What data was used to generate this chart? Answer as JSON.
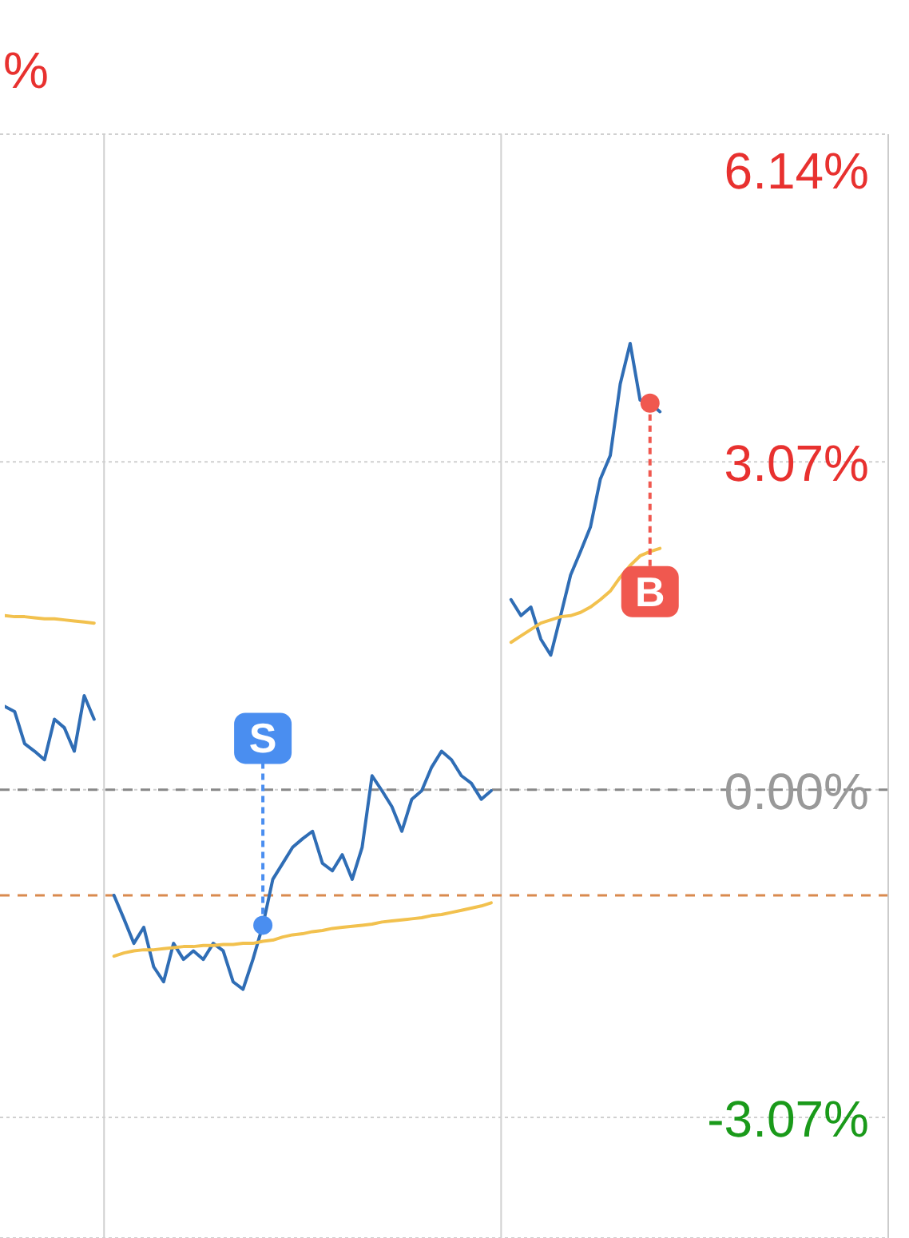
{
  "chart_data": {
    "type": "line",
    "title": "%",
    "categories": [
      null,
      null,
      null,
      null,
      null,
      null,
      null,
      null,
      null,
      null,
      null,
      null,
      null,
      null,
      null,
      null,
      null,
      null,
      null,
      null,
      null,
      null,
      null,
      null,
      null,
      null,
      null,
      null,
      null,
      null,
      null,
      null,
      null,
      null,
      null,
      null,
      null,
      null,
      null,
      null,
      null,
      null,
      null,
      null,
      null,
      null,
      null,
      null,
      null,
      null,
      null,
      null,
      null,
      null,
      null,
      null,
      null,
      null,
      null,
      null,
      null,
      null,
      null,
      null,
      null,
      null,
      null,
      null,
      null,
      null,
      null,
      null,
      null,
      null,
      null,
      null,
      null,
      null,
      null,
      null,
      null,
      null,
      null,
      null,
      null,
      null,
      null,
      null,
      null,
      null
    ],
    "series": [
      {
        "color": "#2f6db5",
        "values": [
          0.78,
          0.73,
          0.43,
          0.36,
          0.28,
          0.66,
          0.58,
          0.36,
          0.88,
          0.66,
          null,
          -0.99,
          -1.21,
          -1.44,
          -1.29,
          -1.66,
          -1.8,
          -1.44,
          -1.59,
          -1.51,
          -1.59,
          -1.44,
          -1.51,
          -1.8,
          -1.87,
          -1.59,
          -1.27,
          -0.84,
          -0.69,
          -0.54,
          -0.46,
          -0.39,
          -0.69,
          -0.76,
          -0.61,
          -0.84,
          -0.54,
          0.13,
          -0.01,
          -0.16,
          -0.39,
          -0.09,
          -0.01,
          0.21,
          0.36,
          0.28,
          0.13,
          0.06,
          -0.09,
          -0.01,
          null,
          1.78,
          1.63,
          1.71,
          1.41,
          1.26,
          1.63,
          2.01,
          2.23,
          2.46,
          2.91,
          3.13,
          3.8,
          4.18,
          3.65,
          3.62,
          3.54,
          null,
          null,
          null,
          null,
          null,
          null,
          null,
          null,
          null,
          null,
          null,
          null,
          null,
          null,
          null,
          null,
          null,
          null,
          null,
          null,
          null,
          null,
          null
        ]
      },
      {
        "color": "#f2c14e",
        "values": [
          1.63,
          1.62,
          1.62,
          1.61,
          1.6,
          1.6,
          1.59,
          1.58,
          1.57,
          1.56,
          null,
          -1.56,
          -1.53,
          -1.51,
          -1.5,
          -1.5,
          -1.49,
          -1.48,
          -1.47,
          -1.47,
          -1.46,
          -1.46,
          -1.45,
          -1.45,
          -1.44,
          -1.44,
          -1.42,
          -1.41,
          -1.38,
          -1.36,
          -1.35,
          -1.33,
          -1.32,
          -1.3,
          -1.29,
          -1.28,
          -1.27,
          -1.26,
          -1.24,
          -1.23,
          -1.22,
          -1.21,
          -1.2,
          -1.18,
          -1.17,
          -1.15,
          -1.13,
          -1.11,
          -1.09,
          -1.06,
          null,
          1.38,
          1.44,
          1.5,
          1.56,
          1.59,
          1.62,
          1.63,
          1.66,
          1.71,
          1.78,
          1.86,
          1.99,
          2.1,
          2.19,
          2.23,
          2.26,
          null,
          null,
          null,
          null,
          null,
          null,
          null,
          null,
          null,
          null,
          null,
          null,
          null,
          null,
          null,
          null,
          null,
          null,
          null,
          null,
          null,
          null,
          null
        ]
      },
      {
        "type": "scatter",
        "color": "#4a8ef0",
        "values": [
          null,
          null,
          null,
          null,
          null,
          null,
          null,
          null,
          null,
          null,
          null,
          null,
          null,
          null,
          null,
          null,
          null,
          null,
          null,
          null,
          null,
          null,
          null,
          null,
          null,
          null,
          -1.27,
          null,
          null,
          null,
          null,
          null,
          null,
          null,
          null,
          null,
          null,
          null,
          null,
          null,
          null,
          null,
          null,
          null,
          null,
          null,
          null,
          null,
          null,
          null,
          null,
          null,
          null,
          null,
          null,
          null,
          null,
          null,
          null,
          null,
          null,
          null,
          null,
          null,
          null,
          null,
          null,
          null,
          null,
          null,
          null,
          null,
          null,
          null,
          null,
          null,
          null,
          null,
          null,
          null,
          null,
          null,
          null,
          null,
          null,
          null,
          null,
          null,
          null,
          null
        ]
      },
      {
        "type": "scatter",
        "color": "#f0584f",
        "values": [
          null,
          null,
          null,
          null,
          null,
          null,
          null,
          null,
          null,
          null,
          null,
          null,
          null,
          null,
          null,
          null,
          null,
          null,
          null,
          null,
          null,
          null,
          null,
          null,
          null,
          null,
          null,
          null,
          null,
          null,
          null,
          null,
          null,
          null,
          null,
          null,
          null,
          null,
          null,
          null,
          null,
          null,
          null,
          null,
          null,
          null,
          null,
          null,
          null,
          null,
          null,
          null,
          null,
          null,
          null,
          null,
          null,
          null,
          null,
          null,
          null,
          null,
          null,
          null,
          null,
          3.62,
          null,
          null,
          null,
          null,
          null,
          null,
          null,
          null,
          null,
          null,
          null,
          null,
          null,
          null,
          null,
          null,
          null,
          null,
          null,
          null,
          null,
          null,
          null,
          null
        ]
      }
    ],
    "annotations": [
      "S",
      "B"
    ],
    "ylim": [
      -4.2,
      6.14
    ],
    "yticks": [
      {
        "value": 6.14,
        "label": "6.14%"
      },
      {
        "value": 3.07,
        "label": "3.07%"
      },
      {
        "value": 0,
        "label": "0.00%"
      },
      {
        "value": -3.07,
        "label": "-3.07%"
      }
    ],
    "ref_lines": [
      {
        "axis": "y",
        "value": 0,
        "color": "#888888",
        "line_style": "dashed"
      },
      {
        "axis": "y",
        "value": -0.99,
        "color": "#d98a4e",
        "line_style": "dashed"
      }
    ],
    "grid": true,
    "tick_labels": "y"
  }
}
